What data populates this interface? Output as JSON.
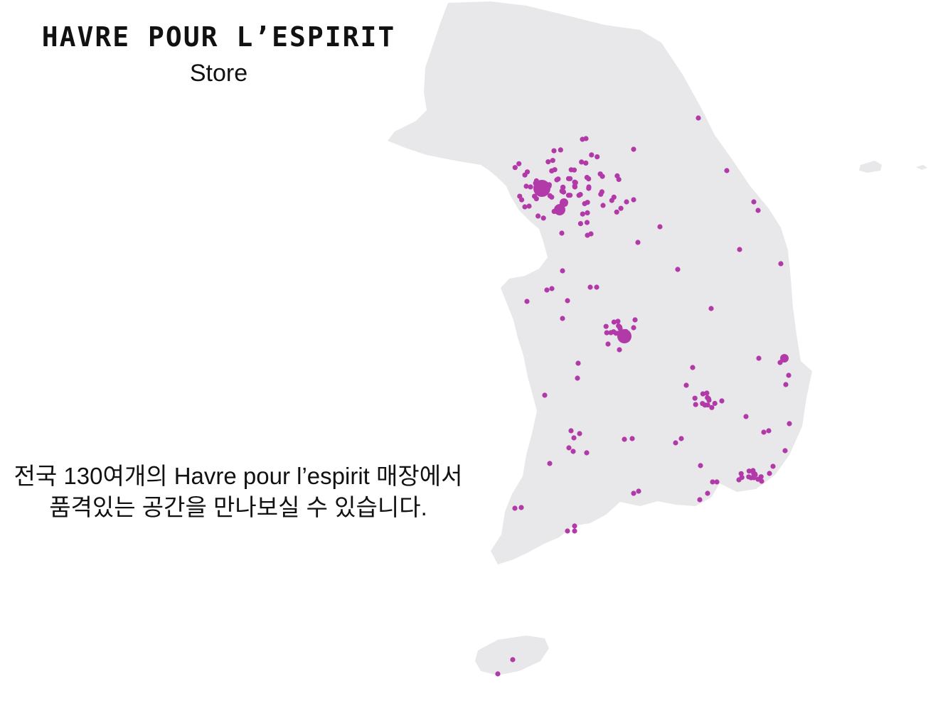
{
  "header": {
    "brand": "HAVRE POUR L’ESPIRIT",
    "subtitle": "Store"
  },
  "description": {
    "line1": "전국 130여개의 Havre pour l’espirit 매장에서",
    "line2": "품격있는 공간을 만나보실 수 있습니다."
  },
  "map": {
    "land_color": "#e8e8ea",
    "marker_color": "#b23aa8",
    "region": "South Korea",
    "store_count_label": "130여개"
  }
}
